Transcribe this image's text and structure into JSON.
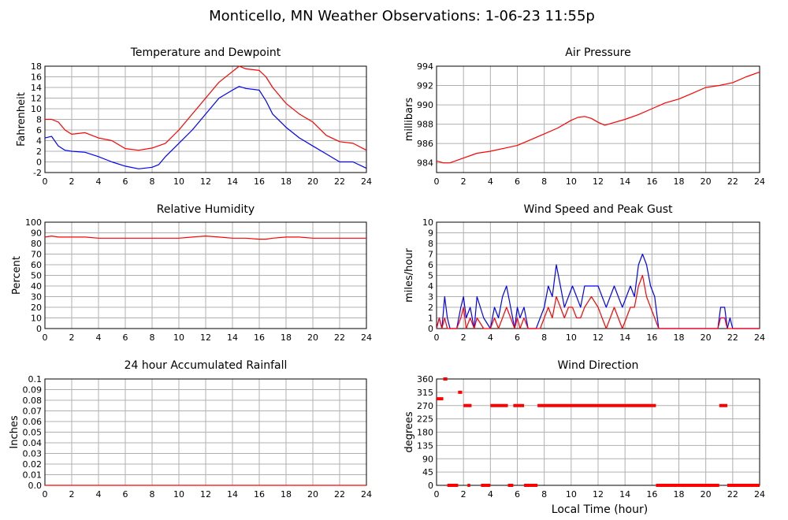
{
  "title": "Monticello, MN Weather Observations: 1-06-23 11:55p",
  "xlabel": "Local Time (hour)",
  "colors": {
    "primary": "#ff0000",
    "secondary": "#0000ff",
    "grid": "#b0b0b0",
    "frame": "#000000"
  },
  "chart_data": [
    {
      "id": "temp",
      "type": "line",
      "title": "Temperature and Dewpoint",
      "ylabel": "Fahrenheit",
      "xlim": [
        0,
        24
      ],
      "ylim": [
        -2,
        18
      ],
      "x_ticks": [
        0,
        2,
        4,
        6,
        8,
        10,
        12,
        14,
        16,
        18,
        20,
        22,
        24
      ],
      "y_ticks": [
        -2,
        0,
        2,
        4,
        6,
        8,
        10,
        12,
        14,
        16,
        18
      ],
      "grid": true,
      "series": [
        {
          "color": "red",
          "style": "line",
          "x": [
            0,
            0.5,
            1,
            1.5,
            2,
            3,
            4,
            5,
            6,
            7,
            8,
            9,
            10,
            11,
            12,
            13,
            14,
            14.5,
            15,
            16,
            16.5,
            17,
            18,
            19,
            20,
            21,
            22,
            23,
            24
          ],
          "y": [
            8,
            8,
            7.5,
            6,
            5.2,
            5.5,
            4.5,
            4,
            2.5,
            2.2,
            2.6,
            3.5,
            6,
            9,
            12,
            15,
            17,
            18,
            17.5,
            17.2,
            16,
            14,
            11,
            9,
            7.5,
            5,
            3.8,
            3.5,
            2.2
          ]
        },
        {
          "color": "blue",
          "style": "line",
          "x": [
            0,
            0.5,
            1,
            1.5,
            2,
            3,
            4,
            5,
            6,
            7,
            8,
            8.5,
            9,
            10,
            11,
            12,
            13,
            14,
            14.5,
            15,
            16,
            16.5,
            17,
            18,
            19,
            20,
            21,
            22,
            23,
            24
          ],
          "y": [
            4.5,
            4.8,
            3,
            2.2,
            2,
            1.8,
            1,
            0,
            -0.8,
            -1.3,
            -1,
            -0.5,
            1,
            3.5,
            6,
            9,
            12,
            13.5,
            14.2,
            13.8,
            13.5,
            11.5,
            9,
            6.5,
            4.5,
            3,
            1.5,
            0,
            0,
            -1.2
          ]
        }
      ]
    },
    {
      "id": "pressure",
      "type": "line",
      "title": "Air Pressure",
      "ylabel": "millibars",
      "xlim": [
        0,
        24
      ],
      "ylim": [
        983,
        994
      ],
      "x_ticks": [
        0,
        2,
        4,
        6,
        8,
        10,
        12,
        14,
        16,
        18,
        20,
        22,
        24
      ],
      "y_ticks": [
        984,
        986,
        988,
        990,
        992,
        994
      ],
      "grid": true,
      "series": [
        {
          "color": "red",
          "style": "line",
          "x": [
            0,
            0.5,
            1,
            2,
            3,
            4,
            5,
            6,
            7,
            8,
            9,
            10,
            10.5,
            11,
            11.5,
            12,
            12.5,
            13,
            14,
            15,
            16,
            17,
            18,
            19,
            20,
            21,
            22,
            23,
            24
          ],
          "y": [
            984.2,
            984,
            984,
            984.5,
            985,
            985.2,
            985.5,
            985.8,
            986.4,
            987,
            987.6,
            988.4,
            988.7,
            988.8,
            988.6,
            988.2,
            987.9,
            988.1,
            988.5,
            989,
            989.6,
            990.2,
            990.6,
            991.2,
            991.8,
            992,
            992.3,
            992.9,
            993.4
          ]
        }
      ]
    },
    {
      "id": "humidity",
      "type": "line",
      "title": "Relative Humidity",
      "ylabel": "Percent",
      "xlim": [
        0,
        24
      ],
      "ylim": [
        0,
        100
      ],
      "x_ticks": [
        0,
        2,
        4,
        6,
        8,
        10,
        12,
        14,
        16,
        18,
        20,
        22,
        24
      ],
      "y_ticks": [
        0,
        10,
        20,
        30,
        40,
        50,
        60,
        70,
        80,
        90,
        100
      ],
      "grid": true,
      "series": [
        {
          "color": "red",
          "style": "line",
          "x": [
            0,
            0.5,
            1,
            2,
            3,
            4,
            5,
            6,
            8,
            10,
            11,
            12,
            13,
            14,
            15,
            16,
            16.5,
            17,
            18,
            19,
            20,
            22,
            24
          ],
          "y": [
            86,
            87,
            86,
            86,
            86,
            85,
            85,
            85,
            85,
            85,
            86,
            87,
            86,
            85,
            85,
            84,
            84,
            85,
            86,
            86,
            85,
            85,
            85
          ]
        }
      ]
    },
    {
      "id": "wind",
      "type": "line",
      "title": "Wind Speed and Peak Gust",
      "ylabel": "miles/hour",
      "xlim": [
        0,
        24
      ],
      "ylim": [
        0,
        10
      ],
      "x_ticks": [
        0,
        2,
        4,
        6,
        8,
        10,
        12,
        14,
        16,
        18,
        20,
        22,
        24
      ],
      "y_ticks": [
        0,
        1,
        2,
        3,
        4,
        5,
        6,
        7,
        8,
        9,
        10
      ],
      "grid": true,
      "series": [
        {
          "color": "blue",
          "style": "line",
          "x": [
            0,
            0.2,
            0.4,
            0.6,
            0.8,
            1,
            1.5,
            1.8,
            2,
            2.2,
            2.5,
            2.8,
            3,
            3.5,
            4,
            4.3,
            4.6,
            4.9,
            5.2,
            5.5,
            5.8,
            6,
            6.2,
            6.5,
            6.8,
            7,
            7.4,
            7.7,
            8,
            8.3,
            8.6,
            8.9,
            9.2,
            9.5,
            9.8,
            10.1,
            10.4,
            10.7,
            11,
            11.5,
            12,
            12.3,
            12.6,
            12.9,
            13.2,
            13.5,
            13.8,
            14.1,
            14.4,
            14.7,
            15,
            15.3,
            15.6,
            15.9,
            16.2,
            16.5,
            17,
            18,
            19,
            20,
            20.9,
            21.1,
            21.4,
            21.6,
            21.8,
            22,
            23,
            24
          ],
          "y": [
            0,
            1,
            0,
            3,
            1,
            0,
            0,
            2,
            3,
            1,
            2,
            0,
            3,
            1,
            0,
            2,
            1,
            3,
            4,
            2,
            0,
            2,
            1,
            2,
            0,
            0,
            0,
            1,
            2,
            4,
            3,
            6,
            4,
            2,
            3,
            4,
            3,
            2,
            4,
            4,
            4,
            3,
            2,
            3,
            4,
            3,
            2,
            3,
            4,
            3,
            6,
            7,
            6,
            4,
            3,
            0,
            0,
            0,
            0,
            0,
            0,
            2,
            2,
            0,
            1,
            0,
            0,
            0
          ]
        },
        {
          "color": "red",
          "style": "line",
          "x": [
            0,
            0.2,
            0.4,
            0.6,
            0.8,
            1,
            1.5,
            1.8,
            2,
            2.2,
            2.5,
            2.8,
            3,
            3.5,
            4,
            4.3,
            4.6,
            4.9,
            5.2,
            5.5,
            5.8,
            6,
            6.2,
            6.5,
            6.8,
            7,
            7.4,
            7.7,
            8,
            8.3,
            8.6,
            8.9,
            9.2,
            9.5,
            9.8,
            10.1,
            10.4,
            10.7,
            11,
            11.5,
            12,
            12.3,
            12.6,
            12.9,
            13.2,
            13.5,
            13.8,
            14.1,
            14.4,
            14.7,
            15,
            15.3,
            15.6,
            15.9,
            16.2,
            16.5,
            17,
            18,
            19,
            20,
            20.9,
            21.1,
            21.4,
            21.6,
            21.8,
            22,
            23,
            24
          ],
          "y": [
            0,
            1,
            0,
            1,
            0,
            0,
            0,
            1,
            2,
            0,
            1,
            0,
            1,
            0,
            0,
            1,
            0,
            1,
            2,
            1,
            0,
            1,
            0,
            1,
            0,
            0,
            0,
            0,
            1,
            2,
            1,
            3,
            2,
            1,
            2,
            2,
            1,
            1,
            2,
            3,
            2,
            1,
            0,
            1,
            2,
            1,
            0,
            1,
            2,
            2,
            4,
            5,
            3,
            2,
            1,
            0,
            0,
            0,
            0,
            0,
            0,
            1,
            1,
            0,
            0,
            0,
            0,
            0
          ]
        }
      ]
    },
    {
      "id": "rain",
      "type": "line",
      "title": "24 hour Accumulated Rainfall",
      "ylabel": "Inches",
      "xlim": [
        0,
        24
      ],
      "ylim": [
        0,
        0.1
      ],
      "x_ticks": [
        0,
        2,
        4,
        6,
        8,
        10,
        12,
        14,
        16,
        18,
        20,
        22,
        24
      ],
      "y_ticks": [
        0,
        0.01,
        0.02,
        0.03,
        0.04,
        0.05,
        0.06,
        0.07,
        0.08,
        0.09,
        0.1
      ],
      "y_tick_labels": [
        "0.0",
        "0.01",
        "0.02",
        "0.03",
        "0.04",
        "0.05",
        "0.06",
        "0.07",
        "0.08",
        "0.09",
        "0.1"
      ],
      "grid": true,
      "series": [
        {
          "color": "red",
          "style": "line",
          "x": [
            0,
            24
          ],
          "y": [
            0,
            0
          ]
        }
      ]
    },
    {
      "id": "direction",
      "type": "scatter",
      "title": "Wind Direction",
      "ylabel": "degrees",
      "xlim": [
        0,
        24
      ],
      "ylim": [
        0,
        360
      ],
      "x_ticks": [
        0,
        2,
        4,
        6,
        8,
        10,
        12,
        14,
        16,
        18,
        20,
        22,
        24
      ],
      "y_ticks": [
        0,
        45,
        90,
        135,
        180,
        225,
        270,
        315,
        360
      ],
      "grid": true,
      "series": [
        {
          "color": "red",
          "style": "segments",
          "segments": [
            {
              "x0": 0.0,
              "x1": 0.5,
              "y": 293
            },
            {
              "x0": 0.5,
              "x1": 0.8,
              "y": 360
            },
            {
              "x0": 0.8,
              "x1": 1.6,
              "y": 0
            },
            {
              "x0": 1.6,
              "x1": 1.9,
              "y": 315
            },
            {
              "x0": 2.0,
              "x1": 2.6,
              "y": 270
            },
            {
              "x0": 2.3,
              "x1": 2.5,
              "y": 0
            },
            {
              "x0": 3.3,
              "x1": 4.0,
              "y": 0
            },
            {
              "x0": 4.0,
              "x1": 5.3,
              "y": 270
            },
            {
              "x0": 5.3,
              "x1": 5.7,
              "y": 0
            },
            {
              "x0": 5.7,
              "x1": 6.5,
              "y": 270
            },
            {
              "x0": 6.5,
              "x1": 7.5,
              "y": 0
            },
            {
              "x0": 7.5,
              "x1": 16.3,
              "y": 270
            },
            {
              "x0": 16.3,
              "x1": 21.0,
              "y": 0
            },
            {
              "x0": 21.0,
              "x1": 21.6,
              "y": 270
            },
            {
              "x0": 21.6,
              "x1": 24.0,
              "y": 0
            }
          ]
        }
      ]
    }
  ]
}
